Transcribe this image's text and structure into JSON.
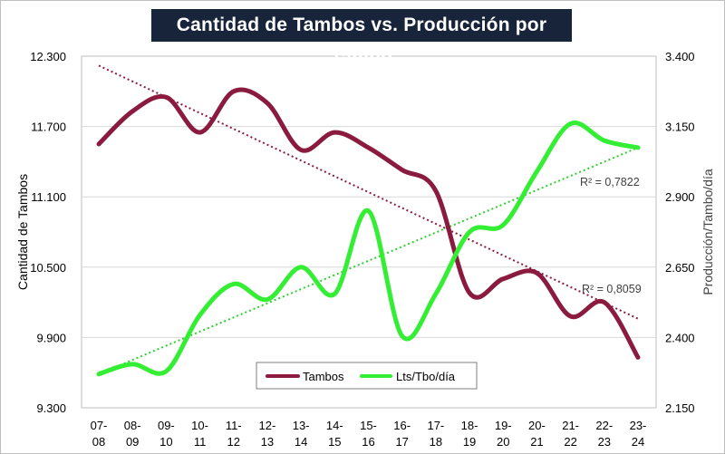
{
  "chart_data": {
    "type": "line",
    "title": "Cantidad de Tambos vs. Producción por Tambo",
    "xlabel": "",
    "ylabel": "Cantidad de Tambos",
    "y2label": "Producción/Tambo/día",
    "categories": [
      [
        "07-",
        "08"
      ],
      [
        "08-",
        "09"
      ],
      [
        "09-",
        "10"
      ],
      [
        "10-",
        "11"
      ],
      [
        "11-",
        "12"
      ],
      [
        "12-",
        "13"
      ],
      [
        "13-",
        "14"
      ],
      [
        "14-",
        "15"
      ],
      [
        "15-",
        "16"
      ],
      [
        "16-",
        "17"
      ],
      [
        "17-",
        "18"
      ],
      [
        "18-",
        "19"
      ],
      [
        "19-",
        "20"
      ],
      [
        "20-",
        "21"
      ],
      [
        "21-",
        "22"
      ],
      [
        "22-",
        "23"
      ],
      [
        "23-",
        "24"
      ]
    ],
    "ylim": [
      9300,
      12300
    ],
    "yticks": [
      "9.300",
      "9.900",
      "10.500",
      "11.100",
      "11.700",
      "12.300"
    ],
    "y2lim": [
      2150,
      3400
    ],
    "y2ticks": [
      "2.150",
      "2.400",
      "2.650",
      "2.900",
      "3.150",
      "3.400"
    ],
    "grid": true,
    "series": [
      {
        "name": "Tambos",
        "axis": "left",
        "color": "#8b1a3f",
        "values": [
          11550,
          11830,
          11950,
          11650,
          12000,
          11900,
          11500,
          11650,
          11520,
          11330,
          11150,
          10280,
          10400,
          10450,
          10080,
          10200,
          9730
        ],
        "trend": {
          "start": 12220,
          "end": 10060,
          "r2": "R² = 0,8059"
        }
      },
      {
        "name": "Lts/Tbo/día",
        "axis": "right",
        "color": "#33ee33",
        "values": [
          2270,
          2305,
          2280,
          2480,
          2590,
          2535,
          2650,
          2555,
          2850,
          2405,
          2555,
          2775,
          2800,
          2990,
          3160,
          3100,
          3075
        ],
        "trend": {
          "start": 2270,
          "end": 3075,
          "r2": "R² = 0,7822"
        }
      }
    ],
    "legend": "bottom-center"
  }
}
